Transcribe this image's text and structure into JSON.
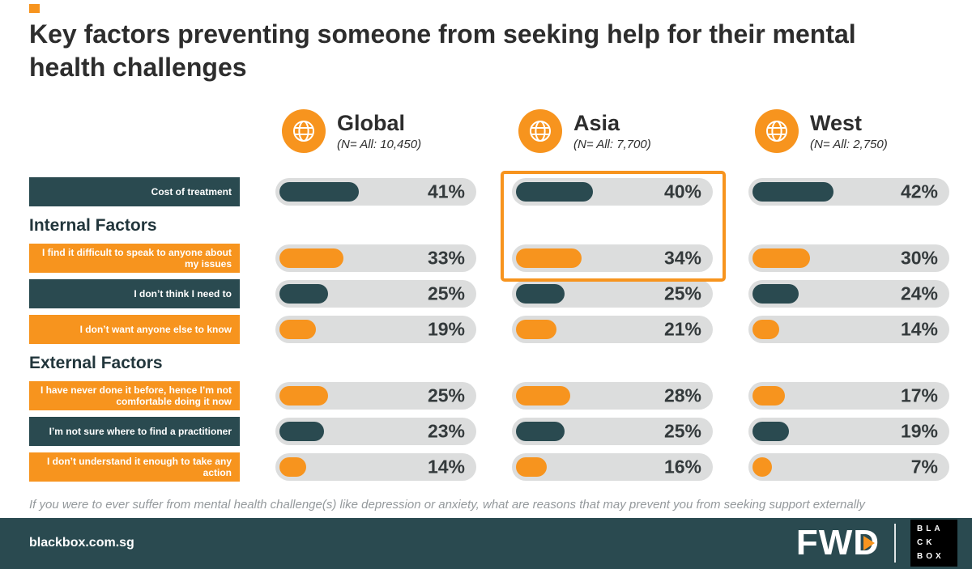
{
  "header": {
    "title": "Key factors preventing someone from seeking help for their mental health challenges"
  },
  "chart_data": {
    "type": "bar",
    "title": "Key factors preventing someone from seeking help for their mental health challenges",
    "unit": "%",
    "xlim": [
      0,
      100
    ],
    "categories": [
      "Cost of treatment",
      "I find it difficult to speak to anyone about my issues",
      "I don’t think I need to",
      "I don’t want anyone else to know",
      "I have never done it before, hence I’m not comfortable doing it now",
      "I’m not sure where to find a practitioner",
      "I don’t understand it enough to take any action"
    ],
    "groups": [
      {
        "label": "Internal Factors",
        "category_indexes": [
          1,
          2,
          3
        ]
      },
      {
        "label": "External Factors",
        "category_indexes": [
          4,
          5,
          6
        ]
      }
    ],
    "series": [
      {
        "name": "Global",
        "subtitle": "(N= All: 10,450)",
        "values": [
          41,
          33,
          25,
          19,
          25,
          23,
          14
        ],
        "labels": [
          "41%",
          "33%",
          "25%",
          "19%",
          "25%",
          "23%",
          "14%"
        ]
      },
      {
        "name": "Asia",
        "subtitle": "(N= All: 7,700)",
        "values": [
          40,
          34,
          25,
          21,
          28,
          25,
          16
        ],
        "labels": [
          "40%",
          "34%",
          "25%",
          "21%",
          "28%",
          "25%",
          "16%"
        ]
      },
      {
        "name": "West",
        "subtitle": "(N= All: 2,750)",
        "values": [
          42,
          30,
          24,
          14,
          17,
          19,
          7
        ],
        "labels": [
          "42%",
          "30%",
          "24%",
          "14%",
          "17%",
          "19%",
          "7%"
        ]
      }
    ],
    "highlight": {
      "series": "Asia",
      "categories": [
        "Cost of treatment",
        "I find it difficult to speak to anyone about my issues"
      ]
    }
  },
  "colors": {
    "teal": "#2a4a50",
    "orange": "#f7941e",
    "track": "#dcdddd",
    "footer_bg": "#2a4a50",
    "highlight": "#f7941e",
    "text_dark": "#2d2d2d"
  },
  "footnote": "If you were to ever suffer from mental health challenge(s) like depression or anxiety, what are reasons that may prevent you from seeking support externally",
  "footer": {
    "website": "blackbox.com.sg",
    "logos": {
      "fwd": "FWD",
      "blackbox_lines": [
        "BLA",
        "CK",
        "BOX"
      ]
    }
  }
}
